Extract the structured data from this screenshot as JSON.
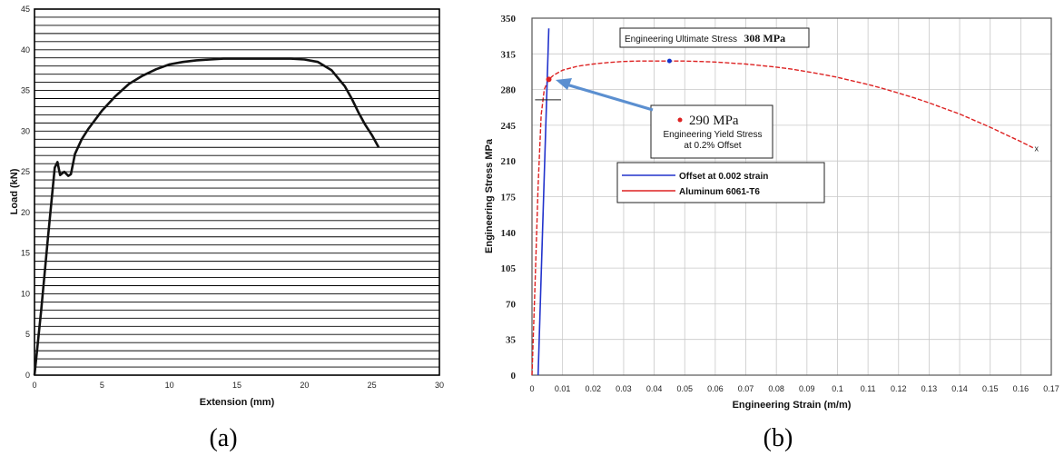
{
  "chart_data": [
    {
      "panel_label": "(a)",
      "type": "line",
      "xlabel": "Extension (mm)",
      "ylabel": "Load (kN)",
      "xlim": [
        0,
        30
      ],
      "ylim": [
        0,
        45
      ],
      "xticks": [
        0,
        5,
        10,
        15,
        20,
        25,
        30
      ],
      "yticks": [
        0,
        5,
        10,
        15,
        20,
        25,
        30,
        35,
        40,
        45
      ],
      "x_tick_labels": [
        "0",
        "5",
        "10",
        "15",
        "20",
        "25",
        "30"
      ],
      "y_tick_labels": [
        "0",
        "5",
        "10",
        "15",
        "20",
        "25",
        "30",
        "35",
        "40",
        "45"
      ],
      "grid": "horizontal lines every 1 kN",
      "series": [
        {
          "x": [
            0,
            0.5,
            1.0,
            1.5,
            1.7,
            1.9,
            2.2,
            2.5,
            2.7,
            3.0,
            3.5,
            4.0,
            5.0,
            6.0,
            7.0,
            8.0,
            9.0,
            10.0,
            11.0,
            12.0,
            13.0,
            14.0,
            15.0,
            16.0,
            17.0,
            18.0,
            19.0,
            20.0,
            21.0,
            22.0,
            23.0,
            23.5,
            24.0,
            24.5,
            25.0,
            25.5
          ],
          "y": [
            0,
            8,
            17,
            25.5,
            26.2,
            24.6,
            25.0,
            24.5,
            24.7,
            27.2,
            29.0,
            30.3,
            32.5,
            34.3,
            35.8,
            36.8,
            37.6,
            38.2,
            38.5,
            38.7,
            38.8,
            38.9,
            38.9,
            38.9,
            38.9,
            38.9,
            38.9,
            38.8,
            38.5,
            37.5,
            35.5,
            34.0,
            32.3,
            30.8,
            29.5,
            28.0
          ]
        }
      ]
    },
    {
      "panel_label": "(b)",
      "type": "line",
      "xlabel": "Engineering Strain (m/m)",
      "ylabel": "Engineering Stress  MPa",
      "xlim": [
        0,
        0.17
      ],
      "ylim": [
        0,
        350
      ],
      "xticks": [
        0,
        0.01,
        0.02,
        0.03,
        0.04,
        0.05,
        0.06,
        0.07,
        0.08,
        0.09,
        0.1,
        0.11,
        0.12,
        0.13,
        0.14,
        0.15,
        0.16,
        0.17
      ],
      "x_tick_labels": [
        "0",
        "0.01",
        "0.02",
        "0.03",
        "0.04",
        "0.05",
        "0.06",
        "0.07",
        "0.08",
        "0.09",
        "0.1",
        "0.11",
        "0.12",
        "0.13",
        "0.14",
        "0.15",
        "0.16",
        "0.17"
      ],
      "yticks": [
        0,
        35,
        70,
        105,
        140,
        175,
        210,
        245,
        280,
        315,
        350
      ],
      "y_tick_labels": [
        "0",
        "35",
        "70",
        "105",
        "140",
        "175",
        "210",
        "245",
        "280",
        "315",
        "350"
      ],
      "grid": true,
      "legend_position": "upper-middle",
      "series": [
        {
          "name": "Offset at 0.002 strain",
          "color": "#2233cc",
          "x": [
            0.002,
            0.0055
          ],
          "y": [
            0,
            340
          ]
        },
        {
          "name": "Aluminum 6061-T6",
          "color": "#dd2222",
          "x": [
            0,
            0.001,
            0.002,
            0.003,
            0.004,
            0.005,
            0.0055,
            0.007,
            0.01,
            0.015,
            0.02,
            0.025,
            0.03,
            0.035,
            0.04,
            0.045,
            0.05,
            0.055,
            0.06,
            0.065,
            0.07,
            0.075,
            0.08,
            0.085,
            0.09,
            0.095,
            0.1,
            0.105,
            0.11,
            0.115,
            0.12,
            0.125,
            0.13,
            0.135,
            0.14,
            0.145,
            0.15,
            0.155,
            0.16,
            0.164
          ],
          "y": [
            0,
            90,
            185,
            255,
            280,
            287,
            290,
            294,
            299,
            303,
            305,
            306.5,
            307.5,
            308,
            308,
            308,
            308,
            307.5,
            307,
            306,
            305,
            303.5,
            302,
            300,
            297.5,
            295,
            292,
            288.5,
            285,
            281,
            276.5,
            272,
            267,
            261.5,
            256,
            249.5,
            243,
            236,
            229,
            223
          ]
        }
      ],
      "annotations": {
        "ultimate": {
          "text_prefix": "Engineering Ultimate Stress",
          "text_value": "308 MPa",
          "x": 0.045,
          "y": 308
        },
        "yield": {
          "value_text": "290 MPa",
          "line1": "Engineering Yield Stress",
          "line2": "at 0.2% Offset",
          "x": 0.0055,
          "y": 290
        },
        "fracture": {
          "marker": "x",
          "x": 0.164,
          "y": 223
        },
        "offset_tick_y": 270
      }
    }
  ]
}
